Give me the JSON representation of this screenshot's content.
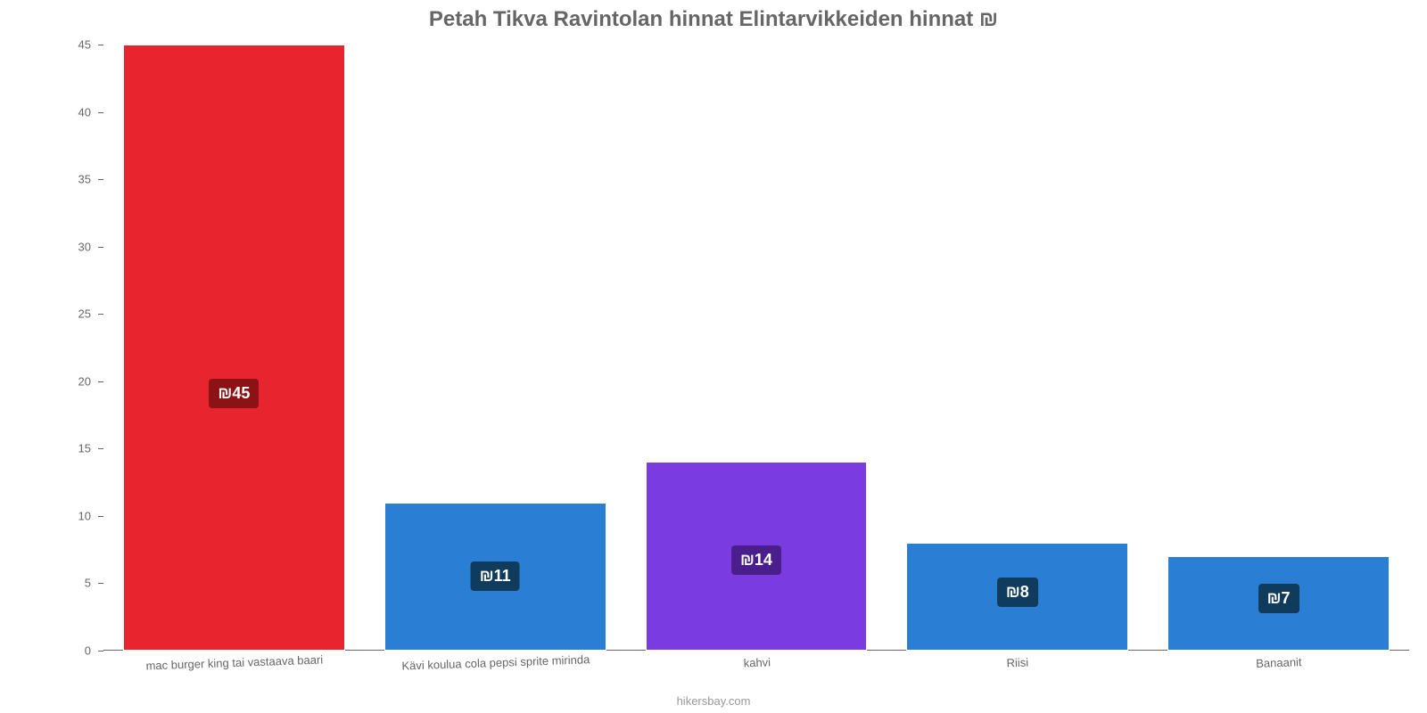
{
  "chart": {
    "type": "bar",
    "title": "Petah Tikva Ravintolan hinnat Elintarvikkeiden hinnat ₪",
    "title_color": "#666666",
    "title_fontsize": 24,
    "background_color": "#ffffff",
    "axis_color": "#666666",
    "label_color": "#666666",
    "label_fontsize": 13,
    "badge_text_color": "#ffffff",
    "badge_fontsize": 18,
    "ylim": [
      0,
      45
    ],
    "yticks": [
      0,
      5,
      10,
      15,
      20,
      25,
      30,
      35,
      40,
      45
    ],
    "bar_width": 0.85,
    "categories": [
      "mac burger king tai vastaava baari",
      "Kävi koulua cola pepsi sprite mirinda",
      "kahvi",
      "Riisi",
      "Banaanit"
    ],
    "values": [
      45,
      11,
      14,
      8,
      7
    ],
    "value_labels": [
      "₪45",
      "₪11",
      "₪14",
      "₪8",
      "₪7"
    ],
    "bar_colors": [
      "#e8252e",
      "#2a7fd4",
      "#7a3ce0",
      "#2a7fd4",
      "#2a7fd4"
    ],
    "badge_bg_colors": [
      "#8c1216",
      "#0f3b5c",
      "#4a1f8c",
      "#0f3b5c",
      "#0f3b5c"
    ]
  },
  "attribution": "hikersbay.com"
}
